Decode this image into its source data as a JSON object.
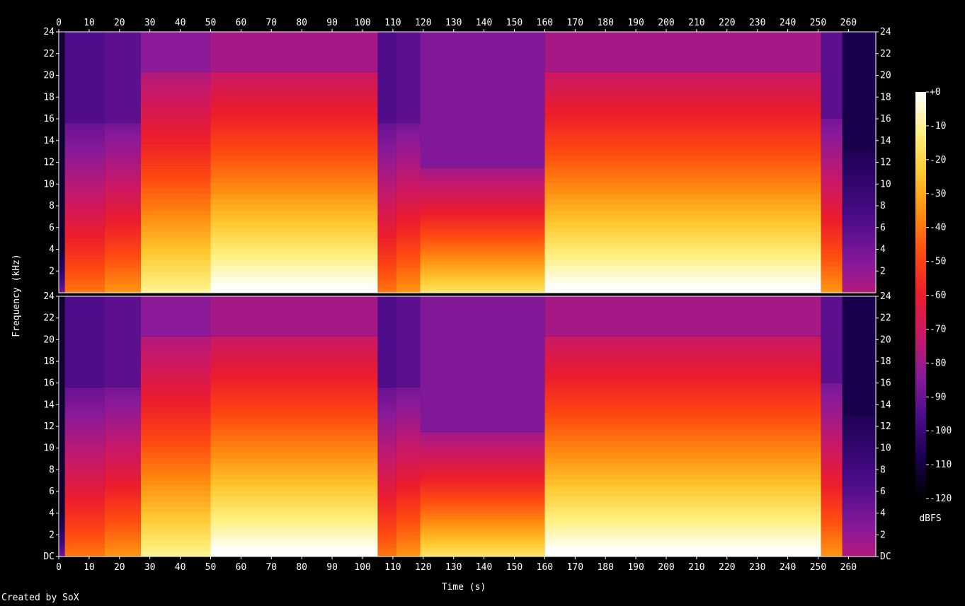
{
  "chart_data": {
    "type": "heatmap",
    "kind": "spectrogram",
    "xlabel": "Time (s)",
    "ylabel": "Frequency (kHz)",
    "xlim": [
      0,
      269
    ],
    "x_ticks": [
      0,
      10,
      20,
      30,
      40,
      50,
      60,
      70,
      80,
      90,
      100,
      110,
      120,
      130,
      140,
      150,
      160,
      170,
      180,
      190,
      200,
      210,
      220,
      230,
      240,
      250,
      260
    ],
    "channels": [
      {
        "y_ticks": [
          "24",
          "22",
          "20",
          "18",
          "16",
          "14",
          "12",
          "10",
          "8",
          "6",
          "4",
          "2"
        ]
      },
      {
        "y_ticks": [
          "24",
          "22",
          "20",
          "18",
          "16",
          "14",
          "12",
          "10",
          "8",
          "6",
          "4",
          "2",
          "DC"
        ]
      }
    ],
    "ylim_khz": [
      0,
      24
    ],
    "colorbar": {
      "unit": "dBFS",
      "range": [
        -120,
        0
      ],
      "ticks": [
        "+0",
        "-10",
        "-20",
        "-30",
        "-40",
        "-50",
        "-60",
        "-70",
        "-80",
        "-90",
        "-100",
        "-110",
        "-120"
      ],
      "colors": [
        "#000000",
        "#1a0050",
        "#4a0c8a",
        "#8a1a9a",
        "#c8186a",
        "#ec1c2c",
        "#ff4a10",
        "#ff8c10",
        "#ffc830",
        "#fff080",
        "#ffffff"
      ]
    },
    "segments": [
      {
        "t": [
          0,
          2
        ],
        "cutoff_khz": 4,
        "level": 0.15
      },
      {
        "t": [
          2,
          15
        ],
        "cutoff_khz": 15.6,
        "level": 0.55
      },
      {
        "t": [
          15,
          27
        ],
        "cutoff_khz": 15.6,
        "level": 0.6
      },
      {
        "t": [
          27,
          50
        ],
        "cutoff_khz": 20.3,
        "level": 0.8
      },
      {
        "t": [
          50,
          105
        ],
        "cutoff_khz": 20.3,
        "level": 0.9
      },
      {
        "t": [
          105,
          111
        ],
        "cutoff_khz": 15.6,
        "level": 0.55
      },
      {
        "t": [
          111,
          119
        ],
        "cutoff_khz": 15.6,
        "level": 0.6
      },
      {
        "t": [
          119,
          160
        ],
        "cutoff_khz": 11.5,
        "level": 0.75
      },
      {
        "t": [
          160,
          251
        ],
        "cutoff_khz": 20.3,
        "level": 0.9
      },
      {
        "t": [
          251,
          258
        ],
        "cutoff_khz": 16,
        "level": 0.6
      },
      {
        "t": [
          258,
          269
        ],
        "cutoff_khz": 13,
        "level": 0.25
      }
    ]
  },
  "footer": {
    "credit": "Created by SoX"
  }
}
